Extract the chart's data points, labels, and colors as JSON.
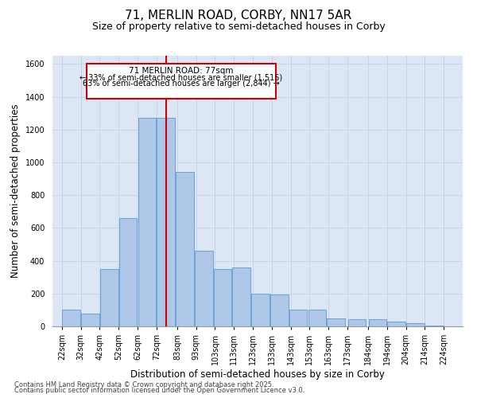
{
  "title": "71, MERLIN ROAD, CORBY, NN17 5AR",
  "subtitle": "Size of property relative to semi-detached houses in Corby",
  "xlabel": "Distribution of semi-detached houses by size in Corby",
  "ylabel": "Number of semi-detached properties",
  "footnote1": "Contains HM Land Registry data © Crown copyright and database right 2025.",
  "footnote2": "Contains public sector information licensed under the Open Government Licence v3.0.",
  "property_label": "71 MERLIN ROAD: 77sqm",
  "smaller_label": "← 33% of semi-detached houses are smaller (1,515)",
  "larger_label": "63% of semi-detached houses are larger (2,844) →",
  "property_size": 77,
  "bar_left_edges": [
    22,
    32,
    42,
    52,
    62,
    72,
    82,
    92,
    102,
    112,
    122,
    132,
    142,
    152,
    162,
    173,
    184,
    194,
    204,
    214
  ],
  "bar_widths": [
    10,
    10,
    10,
    10,
    10,
    10,
    10,
    10,
    10,
    10,
    10,
    10,
    10,
    10,
    10,
    10,
    10,
    10,
    10,
    10
  ],
  "bar_heights": [
    100,
    80,
    350,
    660,
    1270,
    1270,
    940,
    460,
    350,
    360,
    200,
    195,
    100,
    100,
    50,
    45,
    45,
    30,
    20,
    5
  ],
  "bar_color": "#aec6e8",
  "bar_edge_color": "#5b9bd5",
  "vline_color": "#cc0000",
  "vline_x": 77,
  "ylim": [
    0,
    1650
  ],
  "yticks": [
    0,
    200,
    400,
    600,
    800,
    1000,
    1200,
    1400,
    1600
  ],
  "xtick_positions": [
    22,
    32,
    42,
    52,
    62,
    72,
    83,
    93,
    103,
    113,
    123,
    133,
    143,
    153,
    163,
    173,
    184,
    194,
    204,
    214,
    224
  ],
  "xtick_labels": [
    "22sqm",
    "32sqm",
    "42sqm",
    "52sqm",
    "62sqm",
    "72sqm",
    "83sqm",
    "93sqm",
    "103sqm",
    "113sqm",
    "123sqm",
    "133sqm",
    "143sqm",
    "153sqm",
    "163sqm",
    "173sqm",
    "184sqm",
    "194sqm",
    "204sqm",
    "214sqm",
    "224sqm"
  ],
  "grid_color": "#c8d4e8",
  "background_color": "#dce6f5",
  "box_edge_color": "#cc0000",
  "title_fontsize": 11,
  "subtitle_fontsize": 9,
  "axis_label_fontsize": 8.5,
  "tick_fontsize": 7,
  "annotation_fontsize": 7.5,
  "footnote_fontsize": 6
}
